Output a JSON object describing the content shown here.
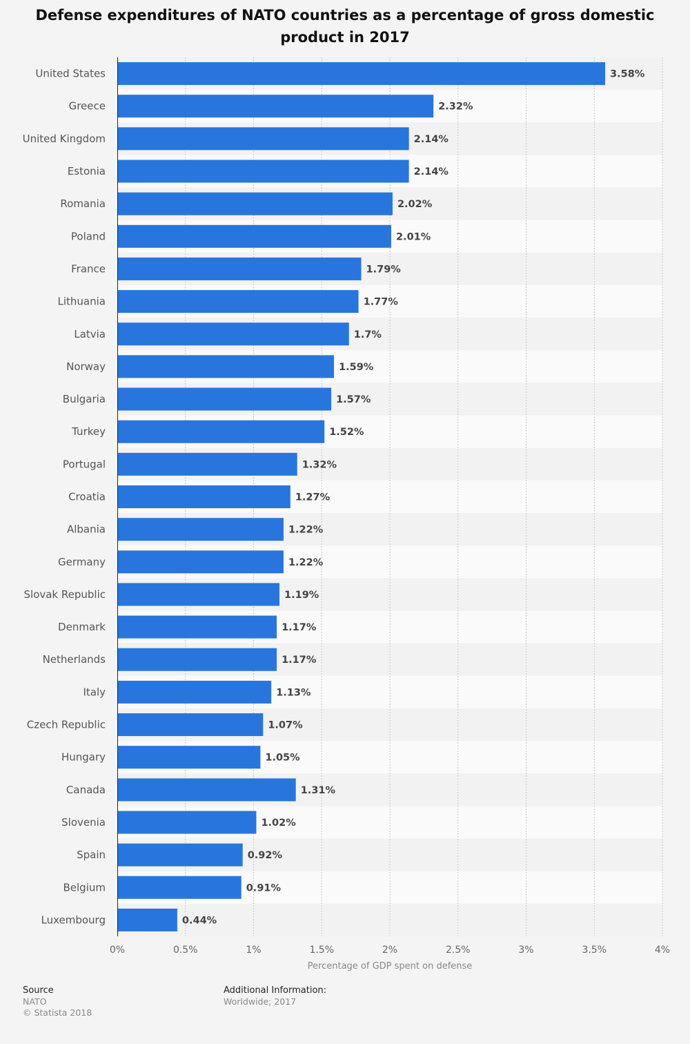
{
  "chart_data": {
    "type": "bar",
    "orientation": "horizontal",
    "title": "Defense expenditures of NATO countries as a percentage of gross domestic product in 2017",
    "categories": [
      "United States",
      "Greece",
      "United Kingdom",
      "Estonia",
      "Romania",
      "Poland",
      "France",
      "Lithuania",
      "Latvia",
      "Norway",
      "Bulgaria",
      "Turkey",
      "Portugal",
      "Croatia",
      "Albania",
      "Germany",
      "Slovak Republic",
      "Denmark",
      "Netherlands",
      "Italy",
      "Czech Republic",
      "Hungary",
      "Canada",
      "Slovenia",
      "Spain",
      "Belgium",
      "Luxembourg"
    ],
    "values": [
      3.58,
      2.32,
      2.14,
      2.14,
      2.02,
      2.01,
      1.79,
      1.77,
      1.7,
      1.59,
      1.57,
      1.52,
      1.32,
      1.27,
      1.22,
      1.22,
      1.19,
      1.17,
      1.17,
      1.13,
      1.07,
      1.05,
      1.31,
      1.02,
      0.92,
      0.91,
      0.44
    ],
    "value_labels": [
      "3.58%",
      "2.32%",
      "2.14%",
      "2.14%",
      "2.02%",
      "2.01%",
      "1.79%",
      "1.77%",
      "1.7%",
      "1.59%",
      "1.57%",
      "1.52%",
      "1.32%",
      "1.27%",
      "1.22%",
      "1.22%",
      "1.19%",
      "1.17%",
      "1.17%",
      "1.13%",
      "1.07%",
      "1.05%",
      "1.31%",
      "1.02%",
      "0.92%",
      "0.91%",
      "0.44%"
    ],
    "xlabel": "Percentage of GDP spent on defense",
    "ylabel": "",
    "xlim": [
      0,
      4
    ],
    "xticks": [
      0,
      0.5,
      1,
      1.5,
      2,
      2.5,
      3,
      3.5,
      4
    ],
    "xtick_labels": [
      "0%",
      "0.5%",
      "1%",
      "1.5%",
      "2%",
      "2.5%",
      "3%",
      "3.5%",
      "4%"
    ],
    "grid": true,
    "bar_color": "#2876dd"
  },
  "footer": {
    "source_heading": "Source",
    "source_name": "NATO",
    "copyright": "© Statista 2018",
    "info_heading": "Additional Information:",
    "info_text": "Worldwide; 2017"
  }
}
